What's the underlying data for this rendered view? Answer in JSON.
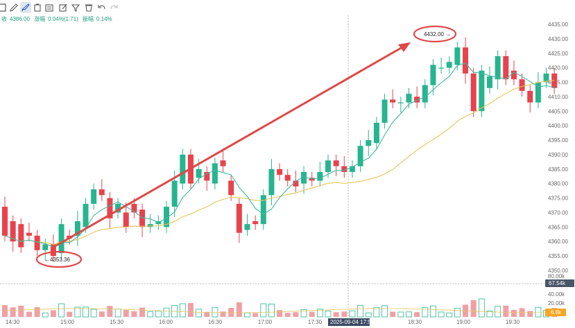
{
  "quote": {
    "close_label": "收",
    "close_value": "4386.00",
    "change_label": "涨幅",
    "change_value": "0.04%(1.71)",
    "amplitude_label": "振幅",
    "amplitude_value": "0.14%"
  },
  "toolbar": {
    "tools": [
      "square-icon",
      "pencil-icon",
      "brush-icon",
      "text-icon",
      "clipboard-icon",
      "edit-icon",
      "filter-icon",
      "trash-icon",
      "undo-icon",
      "redo-icon"
    ],
    "active_tool": "brush-icon"
  },
  "colors": {
    "up": "#26b58e",
    "down": "#e8424c",
    "ma_short": "#3fb8a0",
    "ma_long": "#e4c65a",
    "annotation": "#e04848",
    "volume_up_stroke": "#26b58e",
    "volume_down_fill": "#f0a0a4",
    "volume_current": "#f5a623",
    "volume_current_label_bg": "#f5a623",
    "crosshair_label_bg": "#3b4a63",
    "volume_label_bg": "#4a5568"
  },
  "chart_data": {
    "type": "candlestick",
    "price_axis": {
      "ticks": [
        "4435.00",
        "4430.00",
        "4425.00",
        "4420.00",
        "4415.00",
        "4410.00",
        "4405.00",
        "4400.00",
        "4395.00",
        "4390.00",
        "4385.00",
        "4380.00",
        "4375.00",
        "4370.00",
        "4365.00",
        "4360.00",
        "4355.00",
        "4350.00"
      ],
      "ylim": [
        4347,
        4437
      ]
    },
    "time_axis": {
      "ticks": [
        "14:30",
        "15:00",
        "15:30",
        "16:00",
        "16:30",
        "17:00",
        "17:30",
        "18:30",
        "19:00",
        "19:30"
      ],
      "crosshair_label": "2025-09-04 17:50"
    },
    "candles": [
      {
        "o": 4372,
        "c": 4362
      },
      {
        "o": 4367,
        "c": 4360
      },
      {
        "o": 4366,
        "c": 4358
      },
      {
        "o": 4363,
        "c": 4362
      },
      {
        "o": 4362,
        "c": 4357
      },
      {
        "o": 4357,
        "c": 4359
      },
      {
        "o": 4359,
        "c": 4355
      },
      {
        "o": 4356,
        "c": 4366
      },
      {
        "o": 4362,
        "c": 4361
      },
      {
        "o": 4362,
        "c": 4367
      },
      {
        "o": 4365,
        "c": 4373
      },
      {
        "o": 4373,
        "c": 4378
      },
      {
        "o": 4378,
        "c": 4376
      },
      {
        "o": 4375,
        "c": 4368
      },
      {
        "o": 4370,
        "c": 4373
      },
      {
        "o": 4370,
        "c": 4365
      },
      {
        "o": 4373,
        "c": 4370
      },
      {
        "o": 4371,
        "c": 4365
      },
      {
        "o": 4365,
        "c": 4366
      },
      {
        "o": 4366,
        "c": 4367
      },
      {
        "o": 4365,
        "c": 4372
      },
      {
        "o": 4372,
        "c": 4381
      },
      {
        "o": 4380,
        "c": 4390
      },
      {
        "o": 4390,
        "c": 4380
      },
      {
        "o": 4382,
        "c": 4385
      },
      {
        "o": 4384,
        "c": 4381
      },
      {
        "o": 4380,
        "c": 4387
      },
      {
        "o": 4388,
        "c": 4386
      },
      {
        "o": 4381,
        "c": 4376
      },
      {
        "o": 4373,
        "c": 4363
      },
      {
        "o": 4364,
        "c": 4366
      },
      {
        "o": 4367,
        "c": 4366
      },
      {
        "o": 4366,
        "c": 4376
      },
      {
        "o": 4376,
        "c": 4385
      },
      {
        "o": 4385,
        "c": 4383
      },
      {
        "o": 4383,
        "c": 4381
      },
      {
        "o": 4381,
        "c": 4379
      },
      {
        "o": 4380,
        "c": 4384
      },
      {
        "o": 4382,
        "c": 4381
      },
      {
        "o": 4381,
        "c": 4384
      },
      {
        "o": 4384,
        "c": 4388
      },
      {
        "o": 4388,
        "c": 4386
      },
      {
        "o": 4386,
        "c": 4384
      },
      {
        "o": 4384,
        "c": 4386
      },
      {
        "o": 4386,
        "c": 4393
      },
      {
        "o": 4393,
        "c": 4395
      },
      {
        "o": 4394,
        "c": 4401
      },
      {
        "o": 4401,
        "c": 4409
      },
      {
        "o": 4409,
        "c": 4408
      },
      {
        "o": 4408,
        "c": 4408
      },
      {
        "o": 4408,
        "c": 4411
      },
      {
        "o": 4410,
        "c": 4408
      },
      {
        "o": 4408,
        "c": 4414
      },
      {
        "o": 4414,
        "c": 4421
      },
      {
        "o": 4420,
        "c": 4420
      },
      {
        "o": 4420,
        "c": 4422
      },
      {
        "o": 4421,
        "c": 4427
      },
      {
        "o": 4427,
        "c": 4418
      },
      {
        "o": 4418,
        "c": 4405
      },
      {
        "o": 4405,
        "c": 4419
      },
      {
        "o": 4413,
        "c": 4417
      },
      {
        "o": 4416,
        "c": 4424
      },
      {
        "o": 4424,
        "c": 4416
      },
      {
        "o": 4419,
        "c": 4416
      },
      {
        "o": 4416,
        "c": 4412
      },
      {
        "o": 4412,
        "c": 4408
      },
      {
        "o": 4408,
        "c": 4415
      },
      {
        "o": 4415,
        "c": 4418
      },
      {
        "o": 4418,
        "c": 4413
      }
    ],
    "annotations": {
      "low_label": "4353.36",
      "high_label": "4432.00"
    },
    "volume_axis": {
      "ticks": [
        "40.00k",
        "20.00k"
      ],
      "top_label": "80.00k",
      "current_label": "67.54k",
      "current_volume_label": "6.8k"
    }
  }
}
